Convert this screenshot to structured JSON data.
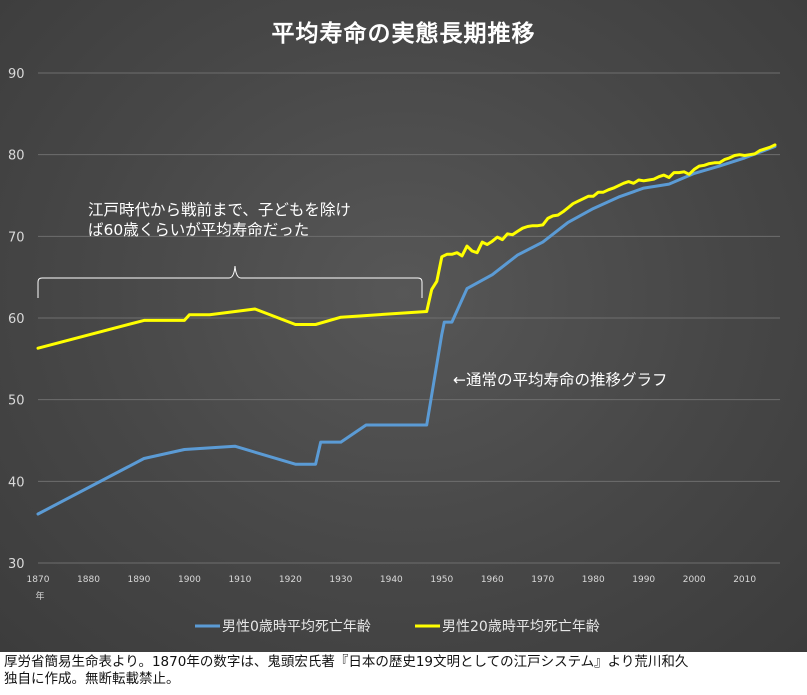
{
  "title": "平均寿命の実態長期推移",
  "chart_data": {
    "type": "line",
    "title": "平均寿命の実態長期推移",
    "ylim": [
      30,
      90
    ],
    "yticks": [
      30,
      40,
      50,
      60,
      70,
      80,
      90
    ],
    "xticks": [
      "1870",
      "1880",
      "1890",
      "1900",
      "1910",
      "1920",
      "1930",
      "1940",
      "1950",
      "1960",
      "1970",
      "1980",
      "1990",
      "2000",
      "2010"
    ],
    "xunit": "年",
    "xlim": [
      1870,
      2017
    ],
    "grid": "horizontal",
    "legend": "bottom",
    "series": [
      {
        "name": "男性0歳時平均死亡年齢",
        "color": "#5b9bd5",
        "x": [
          1870,
          1891,
          1899,
          1909,
          1921,
          1925,
          1926,
          1930,
          1935,
          1947,
          1950,
          1950.5,
          1952,
          1955,
          1960,
          1965,
          1970,
          1975,
          1980,
          1985,
          1990,
          1995,
          2000,
          2005,
          2010,
          2016
        ],
        "values": [
          36.0,
          42.8,
          43.9,
          44.3,
          42.1,
          42.1,
          44.8,
          44.8,
          46.9,
          46.9,
          58.0,
          59.5,
          59.5,
          63.6,
          65.3,
          67.7,
          69.3,
          71.7,
          73.4,
          74.8,
          75.9,
          76.4,
          77.7,
          78.6,
          79.6,
          81.0
        ]
      },
      {
        "name": "男性20歳時平均死亡年齢",
        "color": "#ffff00",
        "x": [
          1870,
          1891,
          1899,
          1900,
          1904,
          1913,
          1921,
          1925,
          1930,
          1947,
          1948,
          1949,
          1950,
          1951,
          1952,
          1953,
          1954,
          1955,
          1956,
          1957,
          1958,
          1959,
          1960,
          1961,
          1962,
          1963,
          1964,
          1965,
          1966,
          1967,
          1968,
          1969,
          1970,
          1971,
          1972,
          1973,
          1974,
          1975,
          1976,
          1977,
          1978,
          1979,
          1980,
          1981,
          1982,
          1983,
          1984,
          1985,
          1986,
          1987,
          1988,
          1989,
          1990,
          1991,
          1992,
          1993,
          1994,
          1995,
          1996,
          1997,
          1998,
          1999,
          2000,
          2001,
          2002,
          2003,
          2004,
          2005,
          2006,
          2007,
          2008,
          2009,
          2010,
          2011,
          2012,
          2013,
          2014,
          2015,
          2016
        ],
        "values": [
          56.3,
          59.7,
          59.7,
          60.4,
          60.4,
          61.1,
          59.2,
          59.2,
          60.1,
          60.8,
          63.5,
          64.5,
          67.5,
          67.8,
          67.8,
          68.0,
          67.6,
          68.8,
          68.2,
          68.0,
          69.3,
          69.0,
          69.4,
          69.9,
          69.6,
          70.3,
          70.2,
          70.6,
          71.0,
          71.2,
          71.3,
          71.3,
          71.4,
          72.2,
          72.5,
          72.6,
          73.0,
          73.5,
          74.0,
          74.3,
          74.6,
          74.9,
          74.9,
          75.4,
          75.4,
          75.7,
          75.9,
          76.2,
          76.5,
          76.7,
          76.5,
          76.9,
          76.8,
          76.9,
          77.0,
          77.3,
          77.5,
          77.2,
          77.8,
          77.8,
          77.9,
          77.6,
          78.2,
          78.6,
          78.7,
          78.9,
          79.0,
          79.0,
          79.4,
          79.6,
          79.9,
          80.0,
          79.9,
          80.0,
          80.1,
          80.5,
          80.7,
          80.9,
          81.2
        ]
      }
    ]
  },
  "annotations": {
    "bracket_text_line1": "江戸時代から戦前まで、子どもを除け",
    "bracket_text_line2": "ば60歳くらいが平均寿命だった",
    "arrow_note": "←通常の平均寿命の推移グラフ"
  },
  "footer": {
    "line1": "厚労省簡易生命表より。1870年の数字は、鬼頭宏氏著『日本の歴史19文明としての江戸システム』より荒川和久",
    "line2": "独自に作成。無断転載禁止。"
  }
}
